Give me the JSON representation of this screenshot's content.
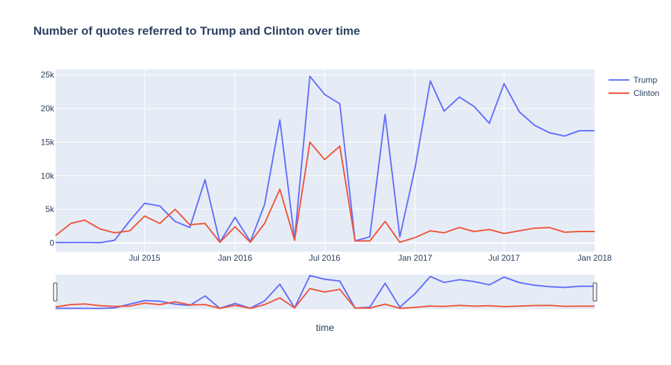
{
  "chart_data": {
    "type": "line",
    "title": "Number of quotes referred to Trump and Clinton over time",
    "xlabel": "time",
    "ylabel": "",
    "x_range": [
      "2015-01-01",
      "2018-01-01"
    ],
    "ylim": [
      -1300,
      25800
    ],
    "y_ticks": [
      0,
      5000,
      10000,
      15000,
      20000,
      25000
    ],
    "y_tick_labels": [
      "0",
      "5k",
      "10k",
      "15k",
      "20k",
      "25k"
    ],
    "x_ticks": [
      "2015-07-01",
      "2016-01-01",
      "2016-07-01",
      "2017-01-01",
      "2017-07-01",
      "2018-01-01"
    ],
    "x_tick_labels": [
      "Jul 2015",
      "Jan 2016",
      "Jul 2016",
      "Jan 2017",
      "Jul 2017",
      "Jan 2018"
    ],
    "grid": true,
    "legend_position": "top-right",
    "range_slider": true,
    "x": [
      "2015-01-01",
      "2015-02-01",
      "2015-03-01",
      "2015-04-01",
      "2015-05-01",
      "2015-06-01",
      "2015-07-01",
      "2015-08-01",
      "2015-09-01",
      "2015-10-01",
      "2015-11-01",
      "2015-12-01",
      "2016-01-01",
      "2016-02-01",
      "2016-03-01",
      "2016-04-01",
      "2016-05-01",
      "2016-06-01",
      "2016-07-01",
      "2016-08-01",
      "2016-09-01",
      "2016-10-01",
      "2016-11-01",
      "2016-12-01",
      "2017-01-01",
      "2017-02-01",
      "2017-03-01",
      "2017-04-01",
      "2017-05-01",
      "2017-06-01",
      "2017-07-01",
      "2017-08-01",
      "2017-09-01",
      "2017-10-01",
      "2017-11-01",
      "2017-12-01",
      "2018-01-01"
    ],
    "series": [
      {
        "name": "Trump",
        "color": "#636efa",
        "values": [
          50,
          70,
          80,
          30,
          400,
          3300,
          5900,
          5500,
          3200,
          2300,
          9400,
          100,
          3800,
          200,
          5700,
          18300,
          500,
          24800,
          22100,
          20700,
          300,
          900,
          19100,
          900,
          11200,
          24100,
          19600,
          21700,
          20300,
          17800,
          23700,
          19500,
          17500,
          16400,
          15900,
          16700,
          16700
        ]
      },
      {
        "name": "Clinton",
        "color": "#ef553b",
        "values": [
          1100,
          2900,
          3400,
          2100,
          1500,
          1800,
          4000,
          2900,
          5000,
          2700,
          2900,
          100,
          2400,
          100,
          2900,
          8000,
          400,
          15000,
          12400,
          14400,
          300,
          300,
          3200,
          100,
          800,
          1800,
          1500,
          2300,
          1700,
          2000,
          1400,
          1800,
          2200,
          2300,
          1600,
          1700,
          1700
        ]
      }
    ]
  }
}
